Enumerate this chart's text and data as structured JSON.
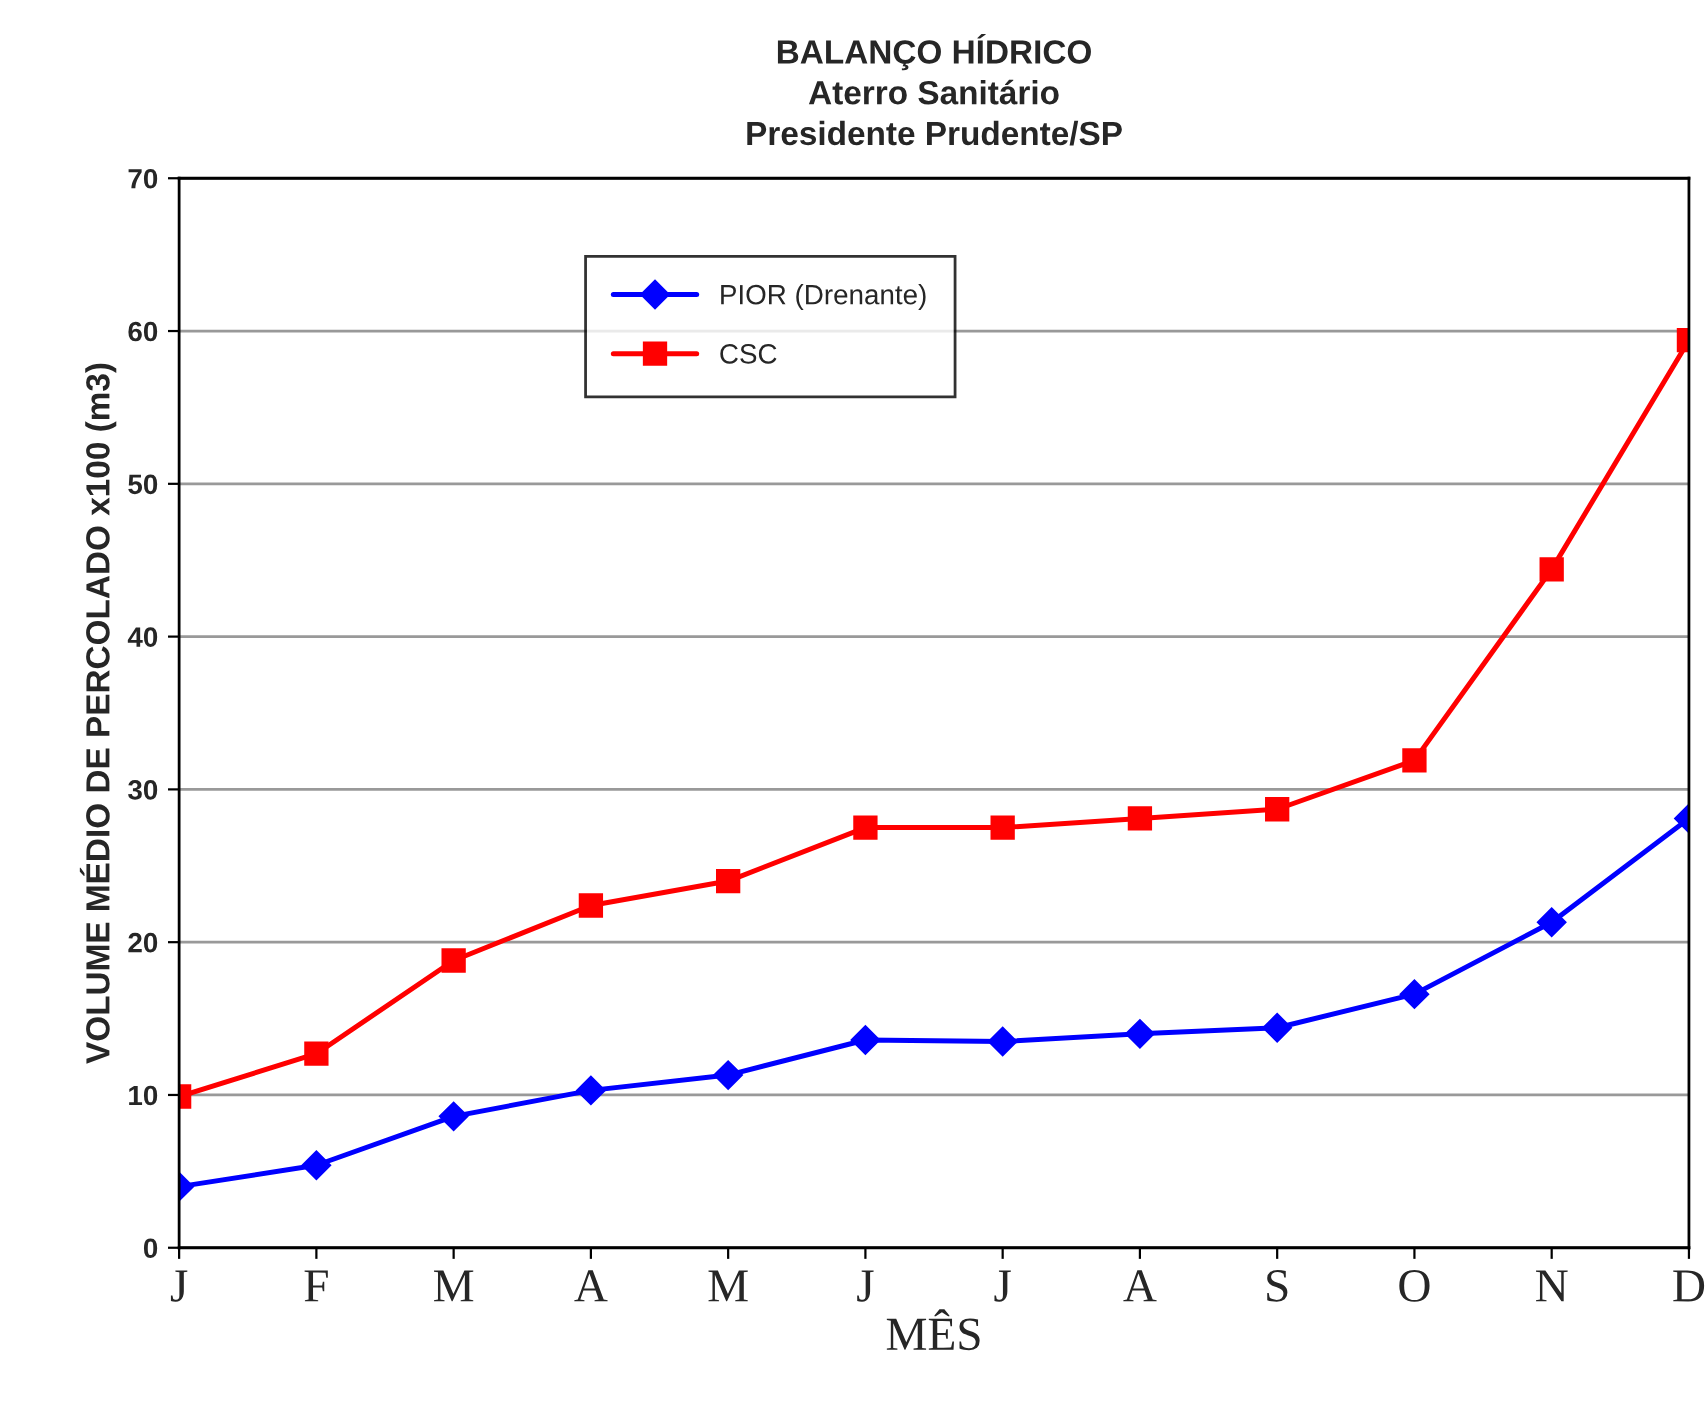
{
  "chart_data": {
    "type": "line",
    "title": "BALANÇO HÍDRICO\nAterro Sanitário\nPresidente Prudente/SP",
    "xlabel": "MÊS",
    "ylabel": "VOLUME MÉDIO DE PERCOLADO x100 (m3)",
    "categories": [
      "J",
      "F",
      "M",
      "A",
      "M",
      "J",
      "J",
      "A",
      "S",
      "O",
      "N",
      "D"
    ],
    "series": [
      {
        "name": "PIOR (Drenante)",
        "color": "#0000ff",
        "marker": "diamond",
        "values": [
          4.0,
          5.4,
          8.6,
          10.3,
          11.3,
          13.6,
          13.5,
          14.0,
          14.4,
          16.6,
          21.3,
          28.1
        ]
      },
      {
        "name": "CSC",
        "color": "#ff0000",
        "marker": "square",
        "values": [
          9.9,
          12.7,
          18.8,
          22.4,
          24.0,
          27.5,
          27.5,
          28.1,
          28.7,
          31.9,
          44.4,
          59.4
        ]
      }
    ],
    "ylim": [
      0,
      70
    ],
    "yticks": [
      0,
      10,
      20,
      30,
      40,
      50,
      60,
      70
    ],
    "grid": "y",
    "legend": "top left",
    "line_style": "solid"
  }
}
